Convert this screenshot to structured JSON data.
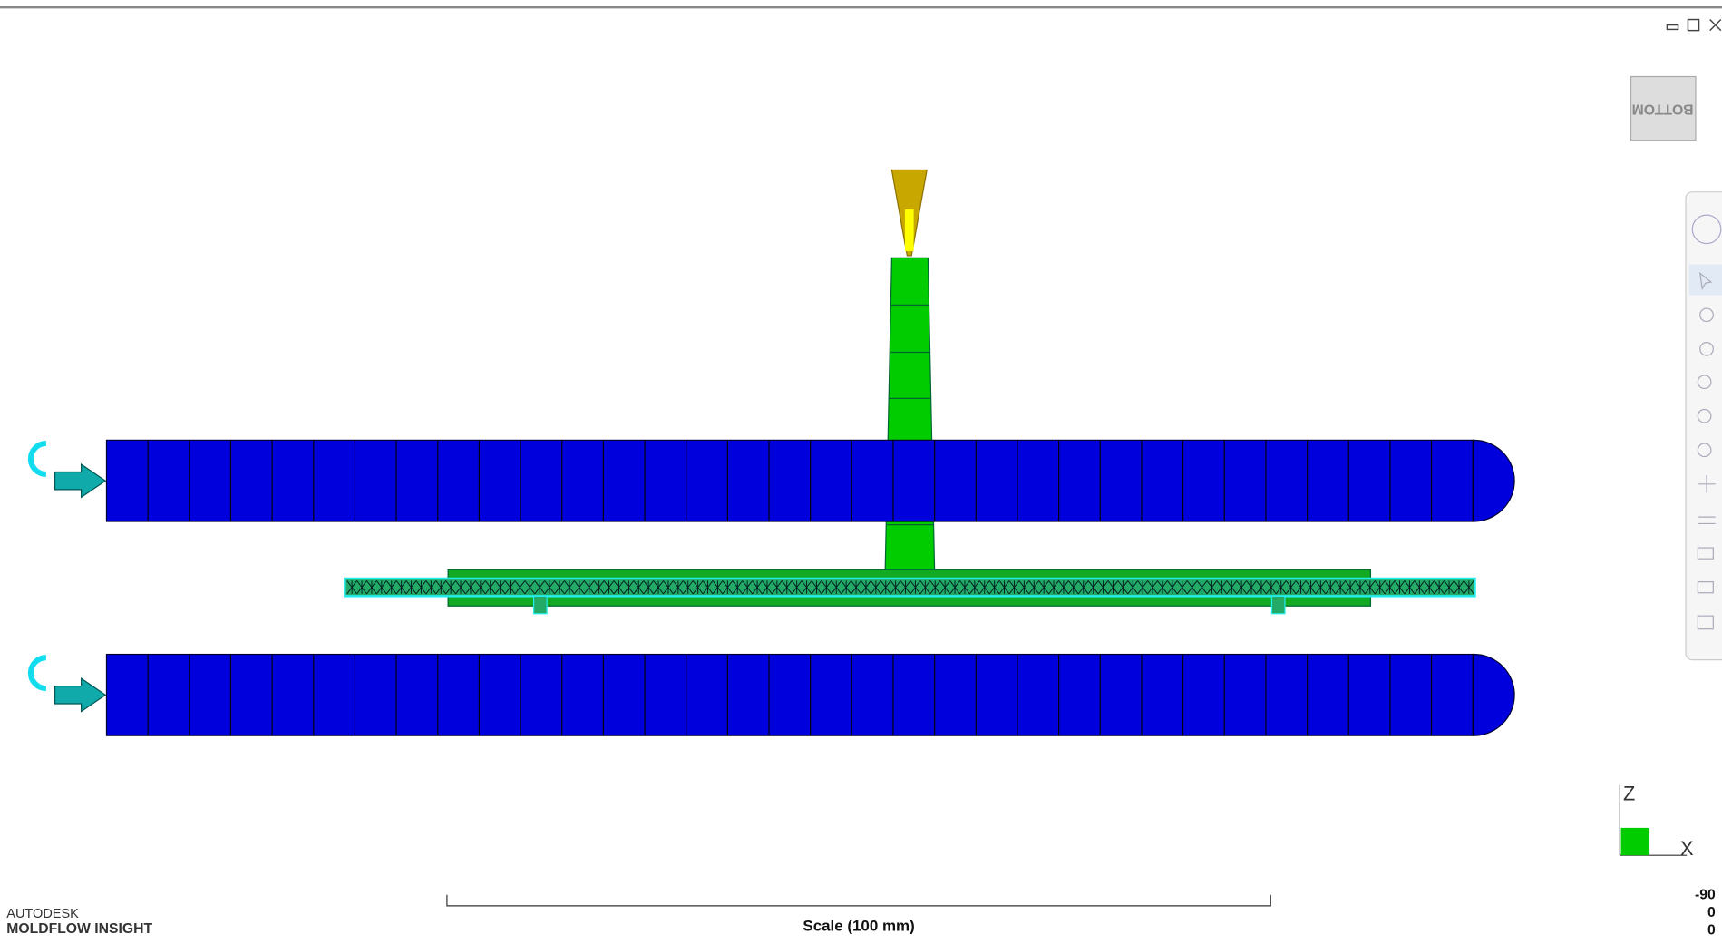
{
  "viewcube": {
    "label": "BOTTOM"
  },
  "triad": {
    "z": "Z",
    "x": "X"
  },
  "rotation": [
    "-90",
    "0",
    "0"
  ],
  "branding": {
    "company": "AUTODESK",
    "product": "MOLDFLOW INSIGHT"
  },
  "scale_bar": {
    "label": "Scale (100 mm)"
  }
}
